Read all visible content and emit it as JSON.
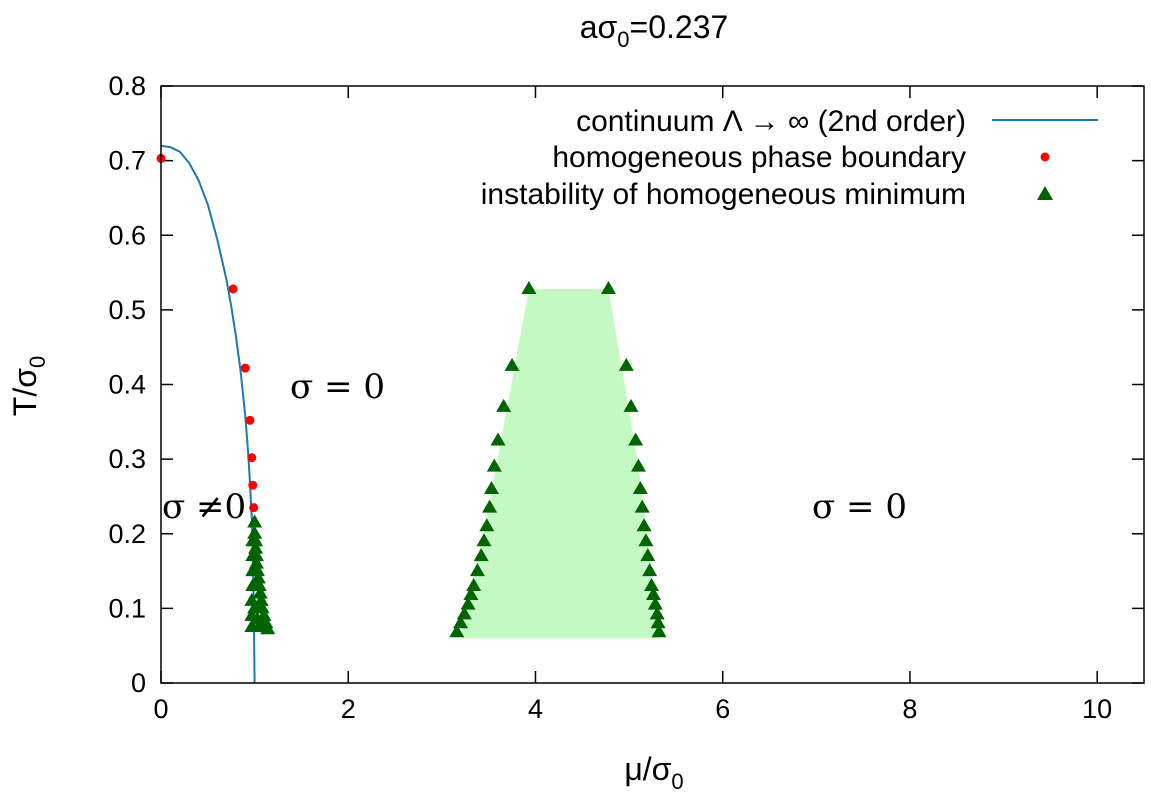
{
  "chart_data": {
    "type": "scatter",
    "title_parts": {
      "main": "aσ",
      "sub": "0",
      "rest": "=0.237"
    },
    "xlabel_parts": {
      "main": "μ/σ",
      "sub": "0"
    },
    "ylabel_parts": {
      "main": "T/σ",
      "sub": "0"
    },
    "xlim": [
      0,
      10.5
    ],
    "ylim": [
      0,
      0.8
    ],
    "xticks": [
      0,
      2,
      4,
      6,
      8,
      10
    ],
    "yticks": [
      0,
      0.1,
      0.2,
      0.3,
      0.4,
      0.5,
      0.6,
      0.7,
      0.8
    ],
    "colors": {
      "curve": "#1f77b4",
      "boundary": "#ff0000",
      "instability": "#006400",
      "region_fill": "#c4f9c4"
    },
    "legend": [
      "continuum Λ → ∞ (2nd order)",
      "homogeneous phase boundary",
      "instability of homogeneous minimum"
    ],
    "annotations": [
      "σ = 0",
      "σ ≠0",
      "σ = 0"
    ],
    "series": [
      {
        "kind": "line",
        "points": [
          [
            0.0,
            0.72
          ],
          [
            0.1,
            0.718
          ],
          [
            0.2,
            0.712
          ],
          [
            0.3,
            0.697
          ],
          [
            0.4,
            0.674
          ],
          [
            0.5,
            0.641
          ],
          [
            0.6,
            0.595
          ],
          [
            0.7,
            0.54
          ],
          [
            0.75,
            0.505
          ],
          [
            0.8,
            0.465
          ],
          [
            0.85,
            0.418
          ],
          [
            0.9,
            0.358
          ],
          [
            0.93,
            0.31
          ],
          [
            0.95,
            0.27
          ],
          [
            0.97,
            0.22
          ],
          [
            0.98,
            0.18
          ],
          [
            0.99,
            0.11
          ],
          [
            1.0,
            0.0
          ]
        ]
      },
      {
        "kind": "scatter",
        "points": [
          [
            0.0,
            0.703
          ],
          [
            0.77,
            0.528
          ],
          [
            0.9,
            0.422
          ],
          [
            0.95,
            0.352
          ],
          [
            0.97,
            0.302
          ],
          [
            0.98,
            0.265
          ],
          [
            0.99,
            0.235
          ]
        ]
      },
      {
        "kind": "scatter",
        "points": [
          [
            1.0,
            0.215
          ],
          [
            1.0,
            0.2
          ],
          [
            1.01,
            0.19
          ],
          [
            1.01,
            0.18
          ],
          [
            1.02,
            0.17
          ],
          [
            1.02,
            0.16
          ],
          [
            1.03,
            0.15
          ],
          [
            1.04,
            0.14
          ],
          [
            1.05,
            0.13
          ],
          [
            1.06,
            0.12
          ],
          [
            1.07,
            0.11
          ],
          [
            1.08,
            0.1
          ],
          [
            1.1,
            0.09
          ],
          [
            1.12,
            0.08
          ],
          [
            1.14,
            0.072
          ],
          [
            0.98,
            0.19
          ],
          [
            0.98,
            0.17
          ],
          [
            0.98,
            0.15
          ],
          [
            0.98,
            0.13
          ],
          [
            0.97,
            0.11
          ],
          [
            0.97,
            0.09
          ],
          [
            0.97,
            0.075
          ],
          [
            1.05,
            0.075
          ],
          [
            1.09,
            0.075
          ],
          [
            1.0,
            0.1
          ],
          [
            1.0,
            0.13
          ],
          [
            1.03,
            0.085
          ],
          [
            1.04,
            0.1
          ],
          [
            3.16,
            0.068
          ],
          [
            3.2,
            0.08
          ],
          [
            3.24,
            0.092
          ],
          [
            3.28,
            0.105
          ],
          [
            3.31,
            0.118
          ],
          [
            3.34,
            0.13
          ],
          [
            3.38,
            0.15
          ],
          [
            3.42,
            0.17
          ],
          [
            3.45,
            0.19
          ],
          [
            3.48,
            0.21
          ],
          [
            3.51,
            0.235
          ],
          [
            3.53,
            0.26
          ],
          [
            3.56,
            0.29
          ],
          [
            3.6,
            0.325
          ],
          [
            3.66,
            0.37
          ],
          [
            3.75,
            0.425
          ],
          [
            3.93,
            0.528
          ],
          [
            4.78,
            0.528
          ],
          [
            4.97,
            0.425
          ],
          [
            5.02,
            0.37
          ],
          [
            5.07,
            0.325
          ],
          [
            5.1,
            0.29
          ],
          [
            5.12,
            0.26
          ],
          [
            5.14,
            0.235
          ],
          [
            5.16,
            0.21
          ],
          [
            5.18,
            0.19
          ],
          [
            5.2,
            0.17
          ],
          [
            5.22,
            0.15
          ],
          [
            5.24,
            0.13
          ],
          [
            5.26,
            0.118
          ],
          [
            5.28,
            0.105
          ],
          [
            5.3,
            0.092
          ],
          [
            5.31,
            0.08
          ],
          [
            5.32,
            0.068
          ]
        ]
      },
      {
        "kind": "area",
        "points": [
          [
            3.2,
            0.06
          ],
          [
            3.5,
            0.235
          ],
          [
            3.93,
            0.528
          ],
          [
            4.78,
            0.528
          ],
          [
            5.1,
            0.29
          ],
          [
            5.33,
            0.06
          ]
        ]
      }
    ]
  }
}
